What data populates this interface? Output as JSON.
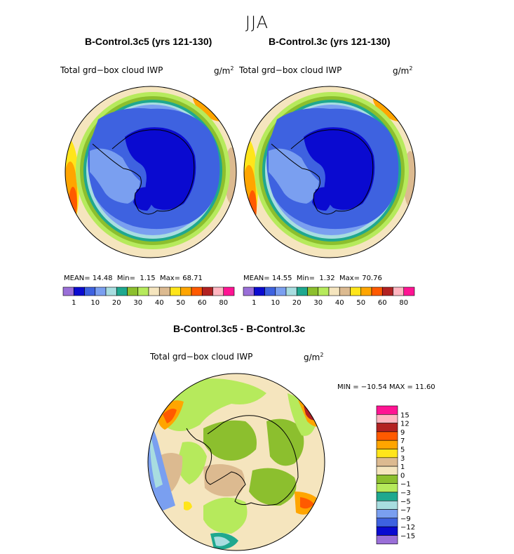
{
  "figure": {
    "season": "JJA"
  },
  "panels": [
    {
      "title": "B-Control.3c5 (yrs 121-130)",
      "variable": "Total grd−box cloud IWP",
      "units": "g/m",
      "units_exp": "2",
      "stats": {
        "mean_label": "MEAN=",
        "mean": "14.48",
        "min_label": "Min=",
        "min": "1.15",
        "max_label": "Max=",
        "max": "68.71"
      }
    },
    {
      "title": "B-Control.3c (yrs 121-130)",
      "variable": "Total grd−box cloud IWP",
      "units": "g/m",
      "units_exp": "2",
      "stats": {
        "mean_label": "MEAN=",
        "mean": "14.55",
        "min_label": "Min=",
        "min": "1.32",
        "max_label": "Max=",
        "max": "70.76"
      }
    },
    {
      "title": "B-Control.3c5 - B-Control.3c",
      "variable": "Total grd−box cloud IWP",
      "units": "g/m",
      "units_exp": "2",
      "stats": {
        "text": "MIN = −10.54 MAX =   11.60"
      }
    }
  ],
  "chart_data": [
    {
      "type": "heatmap",
      "projection": "south-polar-stereographic",
      "title": "B-Control.3c5 (yrs 121-130)",
      "subtitle": "Total grd-box cloud IWP",
      "units": "g/m^2",
      "mean": 14.48,
      "min": 1.15,
      "max": 68.71,
      "legend_colors": [
        "#9a6fd8",
        "#0a0ad0",
        "#3e62e0",
        "#7a9ff0",
        "#a8dde0",
        "#1fa88f",
        "#8cbf2e",
        "#b6ea5c",
        "#f5e5be",
        "#dcba90",
        "#ffe51a",
        "#ffa500",
        "#ff5a00",
        "#b22222",
        "#ffb6c1",
        "#ff1493"
      ],
      "legend_labels": [
        "1",
        "10",
        "20",
        "30",
        "40",
        "50",
        "60",
        "80"
      ]
    },
    {
      "type": "heatmap",
      "projection": "south-polar-stereographic",
      "title": "B-Control.3c (yrs 121-130)",
      "subtitle": "Total grd-box cloud IWP",
      "units": "g/m^2",
      "mean": 14.55,
      "min": 1.32,
      "max": 70.76,
      "legend_colors": [
        "#9a6fd8",
        "#0a0ad0",
        "#3e62e0",
        "#7a9ff0",
        "#a8dde0",
        "#1fa88f",
        "#8cbf2e",
        "#b6ea5c",
        "#f5e5be",
        "#dcba90",
        "#ffe51a",
        "#ffa500",
        "#ff5a00",
        "#b22222",
        "#ffb6c1",
        "#ff1493"
      ],
      "legend_labels": [
        "1",
        "10",
        "20",
        "30",
        "40",
        "50",
        "60",
        "80"
      ]
    },
    {
      "type": "heatmap",
      "projection": "south-polar-stereographic",
      "title": "B-Control.3c5 - B-Control.3c",
      "subtitle": "Total grd-box cloud IWP",
      "units": "g/m^2",
      "min": -10.54,
      "max": 11.6,
      "legend_colors": [
        "#ff1493",
        "#ffb6c1",
        "#b22222",
        "#ff5a00",
        "#ffa500",
        "#ffe51a",
        "#dcba90",
        "#f5e5be",
        "#8cbf2e",
        "#b6ea5c",
        "#1fa88f",
        "#a8dde0",
        "#7a9ff0",
        "#3e62e0",
        "#0a0ad0",
        "#9a6fd8"
      ],
      "legend_labels": [
        "15",
        "12",
        "9",
        "7",
        "5",
        "3",
        "1",
        "0",
        "−1",
        "−3",
        "−5",
        "−7",
        "−9",
        "−12",
        "−15"
      ]
    }
  ]
}
